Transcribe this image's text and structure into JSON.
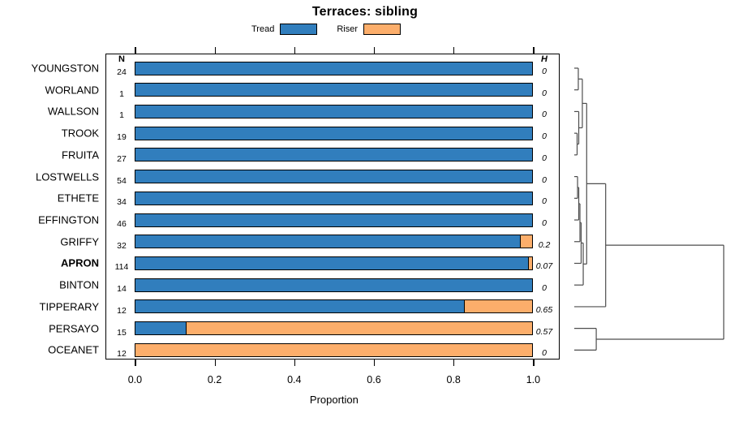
{
  "title": "Terraces: sibling",
  "legend": {
    "items": [
      {
        "label": "Tread",
        "color": "#317EBD"
      },
      {
        "label": "Riser",
        "color": "#FCAE6B"
      }
    ]
  },
  "columns": {
    "n_header": "N",
    "h_header": "H"
  },
  "axis": {
    "label": "Proportion",
    "ticks": [
      "0.0",
      "0.2",
      "0.4",
      "0.6",
      "0.8",
      "1.0"
    ],
    "tick_values": [
      0,
      0.2,
      0.4,
      0.6,
      0.8,
      1.0
    ]
  },
  "chart_data": {
    "type": "bar",
    "orientation": "horizontal",
    "stacked": true,
    "title": "Terraces: sibling",
    "xlabel": "Proportion",
    "xlim": [
      0,
      1
    ],
    "series_names": [
      "Tread",
      "Riser"
    ],
    "categories": [
      "YOUNGSTON",
      "WORLAND",
      "WALLSON",
      "TROOK",
      "FRUITA",
      "LOSTWELLS",
      "ETHETE",
      "EFFINGTON",
      "GRIFFY",
      "APRON",
      "BINTON",
      "TIPPERARY",
      "PERSAYO",
      "OCEANET"
    ],
    "rows": [
      {
        "label": "YOUNGSTON",
        "n": "24",
        "tread": 1.0,
        "riser": 0.0,
        "h": "0",
        "bold": false
      },
      {
        "label": "WORLAND",
        "n": "1",
        "tread": 1.0,
        "riser": 0.0,
        "h": "0",
        "bold": false
      },
      {
        "label": "WALLSON",
        "n": "1",
        "tread": 1.0,
        "riser": 0.0,
        "h": "0",
        "bold": false
      },
      {
        "label": "TROOK",
        "n": "19",
        "tread": 1.0,
        "riser": 0.0,
        "h": "0",
        "bold": false
      },
      {
        "label": "FRUITA",
        "n": "27",
        "tread": 1.0,
        "riser": 0.0,
        "h": "0",
        "bold": false
      },
      {
        "label": "LOSTWELLS",
        "n": "54",
        "tread": 1.0,
        "riser": 0.0,
        "h": "0",
        "bold": false
      },
      {
        "label": "ETHETE",
        "n": "34",
        "tread": 1.0,
        "riser": 0.0,
        "h": "0",
        "bold": false
      },
      {
        "label": "EFFINGTON",
        "n": "46",
        "tread": 1.0,
        "riser": 0.0,
        "h": "0",
        "bold": false
      },
      {
        "label": "GRIFFY",
        "n": "32",
        "tread": 0.97,
        "riser": 0.03,
        "h": "0.2",
        "bold": false
      },
      {
        "label": "APRON",
        "n": "114",
        "tread": 0.99,
        "riser": 0.01,
        "h": "0.07",
        "bold": true
      },
      {
        "label": "BINTON",
        "n": "14",
        "tread": 1.0,
        "riser": 0.0,
        "h": "0",
        "bold": false
      },
      {
        "label": "TIPPERARY",
        "n": "12",
        "tread": 0.83,
        "riser": 0.17,
        "h": "0.65",
        "bold": false
      },
      {
        "label": "PERSAYO",
        "n": "15",
        "tread": 0.13,
        "riser": 0.87,
        "h": "0.57",
        "bold": false
      },
      {
        "label": "OCEANET",
        "n": "12",
        "tread": 0.0,
        "riser": 1.0,
        "h": "0",
        "bold": false
      }
    ]
  },
  "dendrogram": {
    "h": 1.0,
    "children": [
      {
        "h": 0.21,
        "children": [
          {
            "h": 0.083,
            "children": [
              {
                "h": 0.054,
                "children": [
                  {
                    "h": 0.027,
                    "children": [
                      {
                        "leaf": "YOUNGSTON"
                      },
                      {
                        "leaf": "WORLAND"
                      }
                    ]
                  },
                  {
                    "h": 0.03,
                    "children": [
                      {
                        "leaf": "WALLSON"
                      },
                      {
                        "h": 0.019,
                        "children": [
                          {
                            "leaf": "TROOK"
                          },
                          {
                            "leaf": "FRUITA"
                          }
                        ]
                      }
                    ]
                  }
                ]
              },
              {
                "h": 0.06,
                "children": [
                  {
                    "h": 0.046,
                    "children": [
                      {
                        "h": 0.038,
                        "children": [
                          {
                            "h": 0.03,
                            "children": [
                              {
                                "h": 0.022,
                                "children": [
                                  {
                                    "leaf": "LOSTWELLS"
                                  },
                                  {
                                    "leaf": "ETHETE"
                                  }
                                ]
                              },
                              {
                                "leaf": "EFFINGTON"
                              }
                            ]
                          },
                          {
                            "leaf": "GRIFFY"
                          }
                        ]
                      },
                      {
                        "leaf": "APRON"
                      }
                    ]
                  },
                  {
                    "leaf": "BINTON"
                  }
                ]
              }
            ]
          },
          {
            "leaf": "TIPPERARY"
          }
        ]
      },
      {
        "h": 0.147,
        "children": [
          {
            "leaf": "PERSAYO"
          },
          {
            "leaf": "OCEANET"
          }
        ]
      }
    ]
  },
  "colors": {
    "tread": "#317EBD",
    "riser": "#FCAE6B",
    "frame": "#000000",
    "dendro": "#4D4D4D"
  }
}
